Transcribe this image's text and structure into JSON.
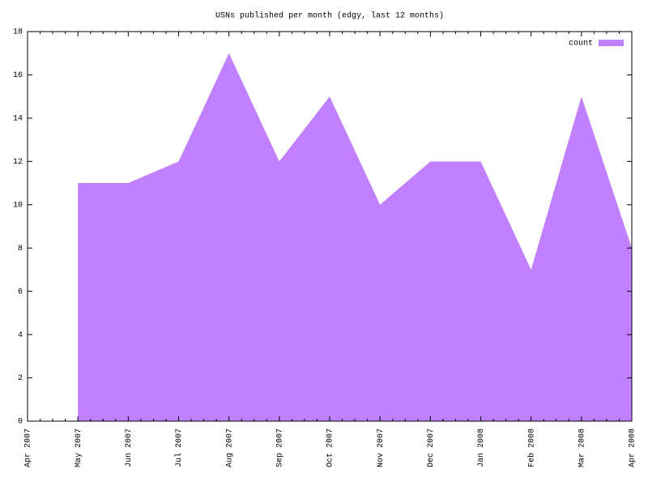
{
  "chart_data": {
    "type": "area",
    "title": "USNs published per month (edgy, last 12 months)",
    "categories": [
      "Apr 2007",
      "May 2007",
      "Jun 2007",
      "Jul 2007",
      "Aug 2007",
      "Sep 2007",
      "Oct 2007",
      "Nov 2007",
      "Dec 2007",
      "Jan 2008",
      "Feb 2008",
      "Mar 2008",
      "Apr 2008"
    ],
    "series": [
      {
        "name": "count",
        "color": "#c080ff",
        "values": [
          null,
          11,
          11,
          12,
          17,
          12,
          15,
          10,
          12,
          12,
          7,
          15,
          8
        ]
      }
    ],
    "ylim": [
      0,
      18
    ],
    "yticks": [
      0,
      2,
      4,
      6,
      8,
      10,
      12,
      14,
      16,
      18
    ],
    "legend": "top-right"
  }
}
